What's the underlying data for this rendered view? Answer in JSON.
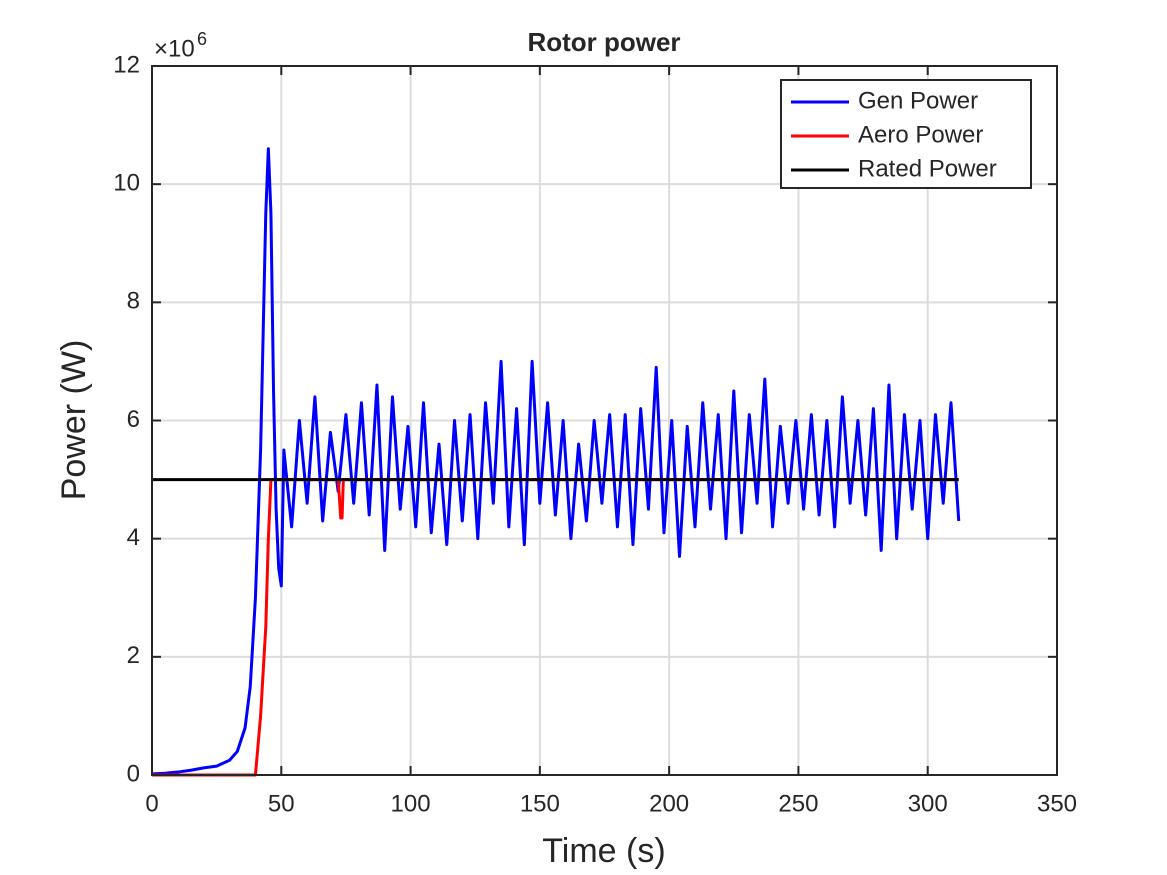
{
  "chart_data": {
    "type": "line",
    "title": "Rotor power",
    "xlabel": "Time (s)",
    "ylabel": "Power (W)",
    "y_multiplier": "×10",
    "y_multiplier_exponent": "6",
    "xlim": [
      0,
      350
    ],
    "xticks": [
      0,
      50,
      100,
      150,
      200,
      250,
      300,
      350
    ],
    "ylim": [
      0,
      12
    ],
    "yticks": [
      0,
      2,
      4,
      6,
      8,
      10,
      12
    ],
    "grid": true,
    "legend": "northeast",
    "series": [
      {
        "name": "Gen Power",
        "color": "#0000ff",
        "x": [
          0,
          5,
          10,
          15,
          20,
          25,
          30,
          33,
          36,
          38,
          40,
          42,
          43,
          44,
          45,
          46,
          47,
          48,
          49,
          50,
          51,
          54,
          57,
          60,
          63,
          66,
          69,
          72,
          75,
          78,
          81,
          84,
          87,
          90,
          93,
          96,
          99,
          102,
          105,
          108,
          111,
          114,
          117,
          120,
          123,
          126,
          129,
          132,
          135,
          138,
          141,
          144,
          147,
          150,
          153,
          156,
          159,
          162,
          165,
          168,
          171,
          174,
          177,
          180,
          183,
          186,
          189,
          192,
          195,
          198,
          201,
          204,
          207,
          210,
          213,
          216,
          219,
          222,
          225,
          228,
          231,
          234,
          237,
          240,
          243,
          246,
          249,
          252,
          255,
          258,
          261,
          264,
          267,
          270,
          273,
          276,
          279,
          282,
          285,
          288,
          291,
          294,
          297,
          300,
          303,
          306,
          309,
          312
        ],
        "values": [
          0.02,
          0.03,
          0.05,
          0.08,
          0.12,
          0.15,
          0.25,
          0.4,
          0.8,
          1.5,
          3,
          5.5,
          7.5,
          9.5,
          10.6,
          9.5,
          6.5,
          4.5,
          3.5,
          3.2,
          5.5,
          4.2,
          6.0,
          4.6,
          6.4,
          4.3,
          5.8,
          4.8,
          6.1,
          4.6,
          6.3,
          4.4,
          6.6,
          3.8,
          6.4,
          4.5,
          5.9,
          4.2,
          6.3,
          4.1,
          5.6,
          3.9,
          6.0,
          4.3,
          6.1,
          4.0,
          6.3,
          4.6,
          7.0,
          4.2,
          6.2,
          3.9,
          7.0,
          4.6,
          6.3,
          4.4,
          6.0,
          4.0,
          5.6,
          4.3,
          6.0,
          4.6,
          6.1,
          4.2,
          6.1,
          3.9,
          6.2,
          4.5,
          6.9,
          4.1,
          6.0,
          3.7,
          5.9,
          4.2,
          6.3,
          4.5,
          6.1,
          4.0,
          6.5,
          4.1,
          6.1,
          4.6,
          6.7,
          4.2,
          5.9,
          4.6,
          6.0,
          4.5,
          6.1,
          4.4,
          6.0,
          4.2,
          6.4,
          4.6,
          6.0,
          4.4,
          6.2,
          3.8,
          6.6,
          4.0,
          6.1,
          4.5,
          6.0,
          4.0,
          6.1,
          4.6,
          6.3,
          4.3
        ]
      },
      {
        "name": "Aero Power",
        "color": "#ff0000",
        "x": [
          0,
          40,
          42,
          44,
          45,
          46,
          72,
          73,
          73.5,
          74,
          312
        ],
        "values": [
          0,
          0,
          1,
          2.5,
          4,
          5,
          5,
          4.35,
          4.35,
          5,
          5
        ]
      },
      {
        "name": "Rated Power",
        "color": "#000000",
        "x": [
          0,
          312
        ],
        "values": [
          5,
          5
        ]
      }
    ]
  }
}
